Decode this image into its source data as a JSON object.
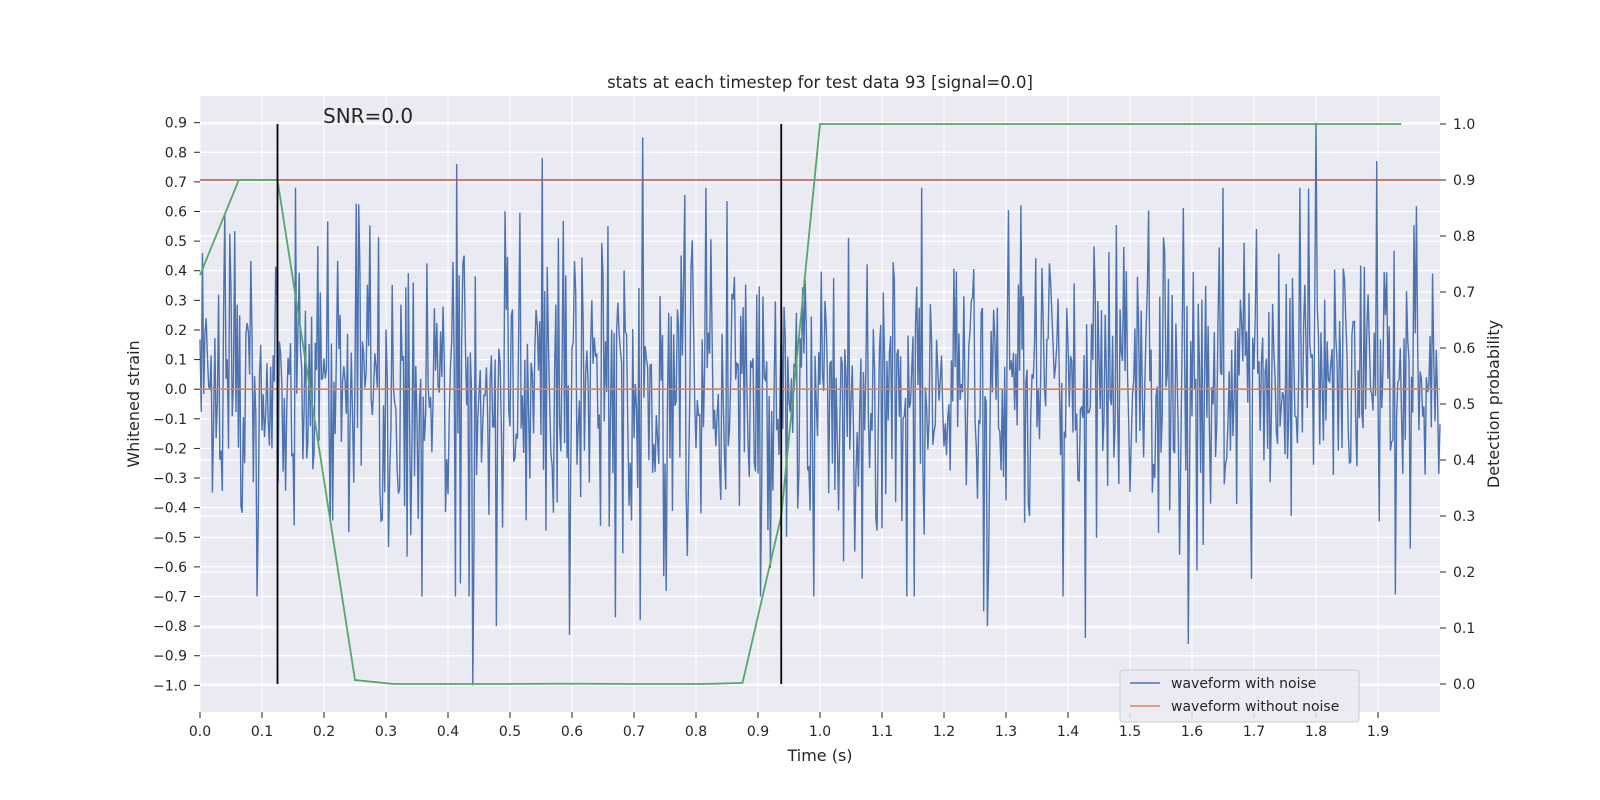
{
  "chart_data": {
    "type": "line",
    "title": "stats at each timestep for test data 93 [signal=0.0]",
    "xlabel": "Time (s)",
    "ylabel_left": "Whitened strain",
    "ylabel_right": "Detection probability",
    "annotation": "SNR=0.0",
    "xlim": [
      0.0,
      2.0
    ],
    "ylim_left": [
      -1.09,
      0.99
    ],
    "ylim_right": [
      -0.05,
      1.05
    ],
    "x_ticks": [
      "0.0",
      "0.1",
      "0.2",
      "0.3",
      "0.4",
      "0.5",
      "0.6",
      "0.7",
      "0.8",
      "0.9",
      "1.0",
      "1.1",
      "1.2",
      "1.3",
      "1.4",
      "1.5",
      "1.6",
      "1.7",
      "1.8",
      "1.9"
    ],
    "y_left_ticks": [
      "0.9",
      "0.8",
      "0.7",
      "0.6",
      "0.5",
      "0.4",
      "0.3",
      "0.2",
      "0.1",
      "0.0",
      "−0.1",
      "−0.2",
      "−0.3",
      "−0.4",
      "−0.5",
      "−0.6",
      "−0.7",
      "−0.8",
      "−0.9",
      "−1.0"
    ],
    "y_right_ticks": [
      "1.0",
      "0.9",
      "0.8",
      "0.7",
      "0.6",
      "0.5",
      "0.4",
      "0.3",
      "0.2",
      "0.1",
      "0.0"
    ],
    "series": [
      {
        "name": "waveform with noise",
        "color": "#4c72b0",
        "axis": "left",
        "description": "dense noisy strain, roughly uniform amplitude about ±0.3 with spikes up to 0.9 and down to -1.0",
        "x_step": 0.002,
        "amplitude_std": 0.27,
        "peaks": [
          {
            "x": 0.415,
            "y": 0.76
          },
          {
            "x": 0.44,
            "y": -1.0
          },
          {
            "x": 0.478,
            "y": -0.8
          },
          {
            "x": 0.552,
            "y": 0.78
          },
          {
            "x": 0.595,
            "y": -0.83
          },
          {
            "x": 0.713,
            "y": 0.85
          },
          {
            "x": 0.71,
            "y": -0.78
          },
          {
            "x": 0.67,
            "y": -0.77
          },
          {
            "x": 1.427,
            "y": -0.84
          },
          {
            "x": 1.594,
            "y": -0.86
          },
          {
            "x": 1.8,
            "y": 0.9
          },
          {
            "x": 1.897,
            "y": 0.77
          },
          {
            "x": 1.27,
            "y": -0.8
          },
          {
            "x": 1.265,
            "y": -0.75
          }
        ]
      },
      {
        "name": "waveform without noise",
        "color": "#dd8452",
        "axis": "left",
        "x": [
          0.0,
          2.0
        ],
        "y": [
          0.0,
          0.0
        ]
      },
      {
        "name": "detection probability",
        "color": "#55a868",
        "axis": "right",
        "in_legend": false,
        "x": [
          0.0,
          0.0625,
          0.125,
          0.25,
          0.3125,
          0.4375,
          0.5,
          0.5625,
          0.625,
          0.6875,
          0.75,
          0.8125,
          0.875,
          0.9375,
          1.0,
          1.0625,
          1.125,
          1.1875,
          1.25,
          1.3125,
          1.375,
          1.4375,
          1.5,
          1.5625,
          1.625,
          1.6875,
          1.75,
          1.8125,
          1.875,
          1.9375
        ],
        "y": [
          0.73,
          0.9,
          0.9,
          0.007,
          0.0,
          0.0,
          0.0,
          0.0005,
          0.0005,
          0.0,
          0.0,
          0.0,
          0.002,
          0.3,
          1.0,
          1.0,
          1.0,
          1.0,
          1.0,
          1.0,
          1.0,
          1.0,
          1.0,
          1.0,
          1.0,
          1.0,
          1.0,
          1.0,
          1.0,
          1.0
        ]
      }
    ],
    "hlines": [
      {
        "axis": "right",
        "y": 0.9,
        "color": "#c44e52",
        "description": "detection threshold"
      }
    ],
    "vlines": [
      {
        "x": 0.125,
        "y_range_right": [
          0.0,
          1.0
        ],
        "color": "#000000"
      },
      {
        "x": 0.9375,
        "y_range_right": [
          0.0,
          1.0
        ],
        "color": "#000000"
      }
    ],
    "legend": {
      "placement": "lower-right",
      "entries": [
        {
          "label": "waveform with noise",
          "color": "#4c72b0"
        },
        {
          "label": "waveform without noise",
          "color": "#dd8452"
        }
      ]
    },
    "grid": true,
    "background": "#eaeaf2"
  }
}
